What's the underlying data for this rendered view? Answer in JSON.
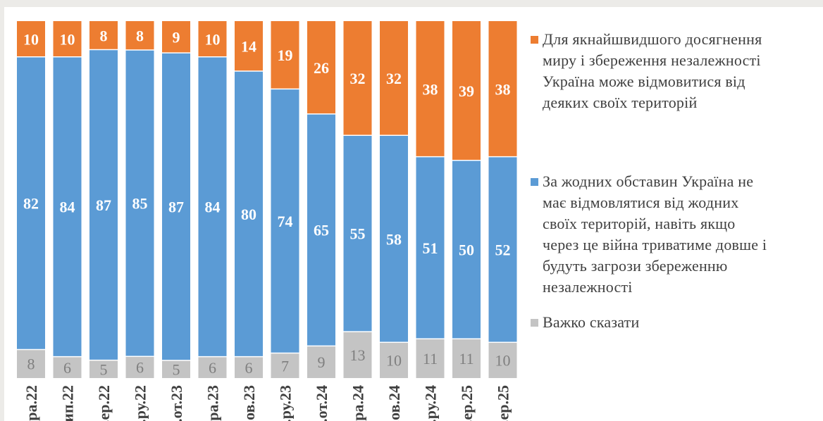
{
  "colors": {
    "page_bg": "#ecebe8",
    "panel_bg": "#ffffff",
    "orange": "#ed7d31",
    "blue": "#5b9bd5",
    "gray": "#c4c4c4",
    "label_white": "#ffffff",
    "label_gray": "#7f7f7f",
    "axis_text": "#404040"
  },
  "chart_data": {
    "type": "bar",
    "stacked": true,
    "percent_scale": [
      0,
      100
    ],
    "categories": [
      "..ра.22",
      "..ип.22",
      "..ер.22",
      "..ру.22",
      "..от.23",
      "..ра.23",
      "..ов.23",
      "..ру.23",
      "..от.24",
      "..ра.24",
      "..ов.24",
      "..ру.24",
      "..ер.25",
      "..ер.25"
    ],
    "series": [
      {
        "name": "Важко сказати",
        "color": "#c4c4c4",
        "values": [
          8,
          6,
          5,
          6,
          5,
          6,
          6,
          7,
          9,
          13,
          10,
          11,
          11,
          10
        ]
      },
      {
        "name": "За жодних обставин Україна не має відмовлятися від жодних своїх територій, навіть якщо через це війна триватиме довше і будуть загрози збереженню незалежності",
        "color": "#5b9bd5",
        "values": [
          82,
          84,
          87,
          85,
          87,
          84,
          80,
          74,
          65,
          55,
          58,
          51,
          50,
          52
        ]
      },
      {
        "name": "Для якнайшвидшого досягнення миру і збереження незалежності Україна може відмовитися від деяких своїх територій",
        "color": "#ed7d31",
        "values": [
          10,
          10,
          8,
          8,
          9,
          10,
          14,
          19,
          26,
          32,
          32,
          38,
          39,
          38
        ]
      }
    ],
    "legend": [
      {
        "series": 2,
        "text_lines": [
          "Для якнайшвидшого досягнення",
          "миру і збереження незалежності",
          "Україна може відмовитися від",
          "деяких своїх територій"
        ]
      },
      {
        "series": 1,
        "text_lines": [
          "За жодних обставин Україна не",
          "має відмовлятися від жодних",
          "своїх територій, навіть якщо",
          "через це війна триватиме довше і",
          "будуть загрози збереженню",
          "незалежності"
        ]
      },
      {
        "series": 0,
        "text_lines": [
          "Важко сказати"
        ]
      }
    ],
    "legend_position": "right",
    "grid": false
  }
}
